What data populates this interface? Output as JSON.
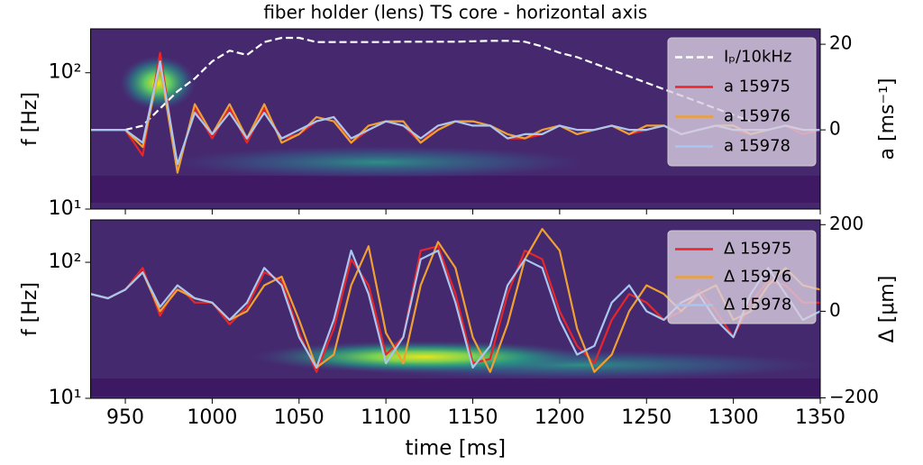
{
  "chart_data": [
    {
      "type": "line",
      "title": "fiber holder (lens) TS core - horizontal axis",
      "ylabel": "f [Hz]",
      "y2label": "a [ms⁻¹]",
      "xlim": [
        930,
        1350
      ],
      "xticks": [
        950,
        1000,
        1050,
        1100,
        1150,
        1200,
        1250,
        1300,
        1350
      ],
      "ylim": [
        10,
        210
      ],
      "yscale": "log",
      "yticks": [
        {
          "value": 10,
          "label": "10¹"
        },
        {
          "value": 100,
          "label": "10²"
        }
      ],
      "y2lim": [
        -18.5,
        23.6
      ],
      "y2ticks": [
        0,
        20
      ],
      "legend": "upper right",
      "x": [
        930,
        940,
        950,
        960,
        970,
        980,
        990,
        1000,
        1010,
        1020,
        1030,
        1040,
        1050,
        1060,
        1070,
        1080,
        1090,
        1100,
        1110,
        1120,
        1130,
        1140,
        1150,
        1160,
        1170,
        1180,
        1190,
        1200,
        1210,
        1220,
        1230,
        1240,
        1250,
        1260,
        1270,
        1280,
        1290,
        1300,
        1310,
        1320,
        1330,
        1340,
        1350
      ],
      "series": [
        {
          "name": "Iₚ/10kHz",
          "color": "#ffffff",
          "linestyle": "dashed",
          "axis": "y2",
          "values": [
            null,
            null,
            0,
            1,
            5,
            9,
            12,
            16,
            18.5,
            17.5,
            20.5,
            21.5,
            21.5,
            20.5,
            20.5,
            20.5,
            20.5,
            20.5,
            20.6,
            20.6,
            20.6,
            20.6,
            20.7,
            20.8,
            20.8,
            20.6,
            19.5,
            18,
            17,
            15.5,
            14,
            12.5,
            11,
            9.5,
            8,
            6.5,
            5,
            3.5,
            2,
            null,
            null,
            null,
            null
          ]
        },
        {
          "name": "a 15975",
          "color": "#e8262a",
          "axis": "y2",
          "values": [
            0,
            0,
            0,
            -6,
            18,
            -9,
            5,
            -2,
            5,
            -3,
            5,
            -2,
            -1,
            2,
            3,
            -3,
            0,
            2,
            1,
            -3,
            1,
            2,
            2,
            1,
            -2,
            -2,
            -1,
            1,
            -1,
            0,
            1,
            -1,
            0,
            1,
            -1,
            0,
            1,
            0,
            -1,
            0,
            1,
            -1,
            0
          ]
        },
        {
          "name": "a 15976",
          "color": "#f0a032",
          "axis": "y2",
          "values": [
            0,
            0,
            0,
            -4,
            15,
            -10,
            6,
            -1,
            6,
            -2,
            6,
            -3,
            -1,
            3,
            2,
            -3,
            1,
            2,
            2,
            -3,
            0,
            2,
            2,
            1,
            -1,
            -2,
            0,
            1,
            -1,
            0,
            1,
            -1,
            1,
            1,
            -1,
            0,
            1,
            1,
            -1,
            0,
            1,
            0,
            0
          ]
        },
        {
          "name": "a 15978",
          "color": "#a9c6ee",
          "axis": "y2",
          "values": [
            0,
            0,
            0,
            -3,
            16,
            -8,
            4,
            -1,
            4,
            -2,
            4,
            -2,
            0,
            2,
            3,
            -2,
            0,
            2,
            1,
            -2,
            1,
            2,
            1,
            1,
            -2,
            -1,
            -1,
            1,
            0,
            0,
            1,
            0,
            0,
            1,
            -1,
            0,
            1,
            0,
            0,
            0,
            1,
            0,
            0
          ]
        }
      ]
    },
    {
      "type": "line",
      "ylabel": "f [Hz]",
      "y2label": "Δ [μm]",
      "xlabel": "time [ms]",
      "xlim": [
        930,
        1350
      ],
      "xticks": [
        950,
        1000,
        1050,
        1100,
        1150,
        1200,
        1250,
        1300,
        1350
      ],
      "ylim": [
        10,
        205
      ],
      "yscale": "log",
      "yticks": [
        {
          "value": 10,
          "label": "10¹"
        },
        {
          "value": 100,
          "label": "10²"
        }
      ],
      "y2lim": [
        -201,
        211
      ],
      "y2ticks": [
        {
          "value": -200,
          "label": "−200"
        },
        0,
        200
      ],
      "legend": "upper right",
      "x": [
        930,
        940,
        950,
        960,
        970,
        980,
        990,
        1000,
        1010,
        1020,
        1030,
        1040,
        1050,
        1060,
        1070,
        1080,
        1090,
        1100,
        1110,
        1120,
        1130,
        1140,
        1150,
        1160,
        1170,
        1180,
        1190,
        1200,
        1210,
        1220,
        1230,
        1240,
        1250,
        1260,
        1270,
        1280,
        1290,
        1300,
        1310,
        1320,
        1330,
        1340,
        1350
      ],
      "series": [
        {
          "name": "Δ 15975",
          "color": "#e8262a",
          "axis": "y2",
          "values": [
            40,
            30,
            50,
            100,
            -10,
            60,
            20,
            20,
            -30,
            10,
            90,
            70,
            -50,
            -140,
            -40,
            120,
            60,
            -100,
            -60,
            140,
            150,
            40,
            -120,
            -110,
            40,
            140,
            120,
            0,
            -80,
            -120,
            -20,
            40,
            20,
            -20,
            0,
            50,
            0,
            -60,
            20,
            70,
            60,
            20,
            20
          ]
        },
        {
          "name": "Δ 15976",
          "color": "#f0a032",
          "axis": "y2",
          "values": [
            40,
            30,
            50,
            90,
            0,
            50,
            30,
            20,
            -20,
            0,
            60,
            80,
            -20,
            -130,
            -100,
            60,
            150,
            -50,
            -120,
            60,
            160,
            100,
            -60,
            -140,
            -30,
            120,
            190,
            140,
            -40,
            -140,
            -100,
            0,
            60,
            40,
            0,
            40,
            60,
            -20,
            0,
            60,
            100,
            60,
            50
          ]
        },
        {
          "name": "Δ 15978",
          "color": "#a9c6ee",
          "axis": "y2",
          "values": [
            40,
            30,
            50,
            90,
            10,
            60,
            30,
            20,
            -20,
            20,
            100,
            60,
            -60,
            -130,
            -20,
            140,
            40,
            -120,
            -60,
            120,
            140,
            20,
            -130,
            -80,
            60,
            120,
            100,
            -20,
            -100,
            -80,
            20,
            60,
            0,
            -20,
            20,
            40,
            -20,
            -60,
            40,
            100,
            40,
            -20,
            0
          ]
        }
      ]
    }
  ]
}
